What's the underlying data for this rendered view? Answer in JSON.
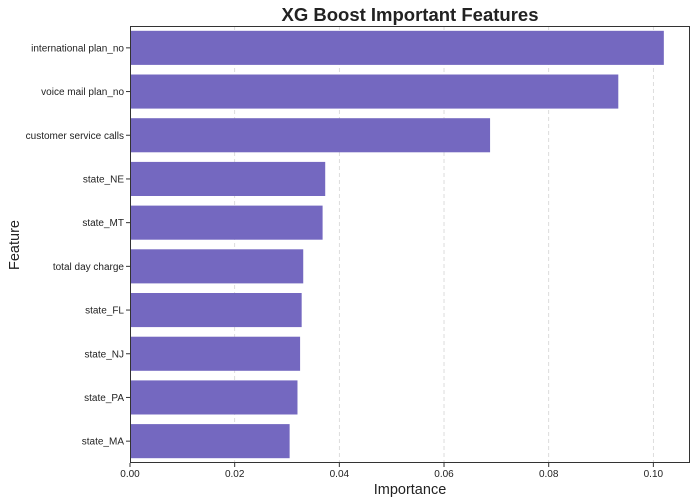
{
  "chart_data": {
    "type": "bar",
    "orientation": "horizontal",
    "title": "XG Boost Important Features",
    "xlabel": "Importance",
    "ylabel": "Feature",
    "categories": [
      "international plan_no",
      "voice mail plan_no",
      "customer service calls",
      "state_NE",
      "state_MT",
      "total day charge",
      "state_FL",
      "state_NJ",
      "state_PA",
      "state_MA"
    ],
    "values": [
      0.102,
      0.0933,
      0.0688,
      0.0373,
      0.0368,
      0.0331,
      0.0328,
      0.0325,
      0.032,
      0.0305
    ],
    "xlim": [
      0,
      0.107
    ],
    "xticks": [
      "0.00",
      "0.02",
      "0.04",
      "0.06",
      "0.08",
      "0.10"
    ],
    "xtick_values": [
      0,
      0.02,
      0.04,
      0.06,
      0.08,
      0.1
    ],
    "grid": "vertical dashed",
    "bar_color": "#7468c0"
  }
}
